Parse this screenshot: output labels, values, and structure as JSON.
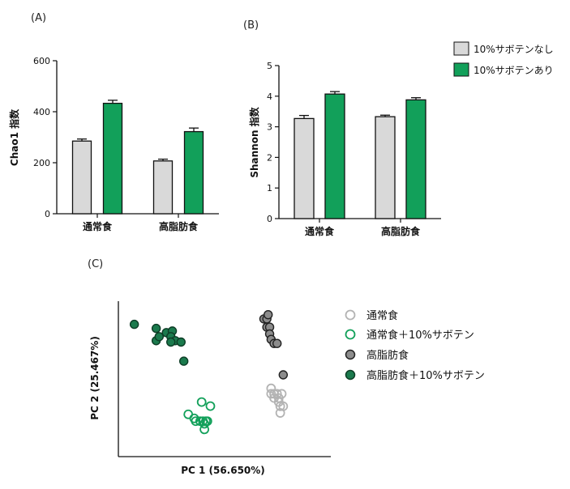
{
  "chart_data": [
    {
      "id": "A",
      "panel_label": "(A)",
      "type": "bar",
      "categories": [
        "通常食",
        "高脂肪食"
      ],
      "ylabel": "Chao1 指数",
      "ylim": [
        0,
        600
      ],
      "yticks": [
        0,
        200,
        400,
        600
      ],
      "series": [
        {
          "name": "10%サボテンなし",
          "color": "#d9d9d9",
          "values": [
            285,
            207
          ],
          "errors": [
            8,
            7
          ]
        },
        {
          "name": "10%サボテンあり",
          "color": "#12a05a",
          "values": [
            433,
            322
          ],
          "errors": [
            12,
            14
          ]
        }
      ]
    },
    {
      "id": "B",
      "panel_label": "(B)",
      "type": "bar",
      "categories": [
        "通常食",
        "高脂肪食"
      ],
      "ylabel": "Shannon 指数",
      "ylim": [
        0,
        5
      ],
      "yticks": [
        0,
        1,
        2,
        3,
        4,
        5
      ],
      "series": [
        {
          "name": "10%サボテンなし",
          "color": "#d9d9d9",
          "values": [
            3.27,
            3.33
          ],
          "errors": [
            0.1,
            0.05
          ]
        },
        {
          "name": "10%サボテンあり",
          "color": "#12a05a",
          "values": [
            4.07,
            3.88
          ],
          "errors": [
            0.08,
            0.07
          ]
        }
      ],
      "legend": "right"
    },
    {
      "id": "C",
      "panel_label": "(C)",
      "type": "scatter",
      "xlabel": "PC 1 (56.650%)",
      "ylabel": "PC 2 (25.467%)",
      "legend": "right",
      "series": [
        {
          "name": "通常食",
          "fill": "none",
          "stroke": "#b3b3b3",
          "points": [
            [
              0.719,
              0.439
            ],
            [
              0.719,
              0.404
            ],
            [
              0.733,
              0.404
            ],
            [
              0.733,
              0.377
            ],
            [
              0.755,
              0.377
            ],
            [
              0.755,
              0.351
            ],
            [
              0.747,
              0.404
            ],
            [
              0.769,
              0.404
            ],
            [
              0.762,
              0.324
            ],
            [
              0.776,
              0.324
            ],
            [
              0.762,
              0.281
            ]
          ]
        },
        {
          "name": "通常食＋10%サボテン",
          "fill": "none",
          "stroke": "#12a05a",
          "points": [
            [
              0.392,
              0.351
            ],
            [
              0.433,
              0.325
            ],
            [
              0.329,
              0.272
            ],
            [
              0.357,
              0.246
            ],
            [
              0.364,
              0.228
            ],
            [
              0.385,
              0.228
            ],
            [
              0.398,
              0.228
            ],
            [
              0.412,
              0.228
            ],
            [
              0.405,
              0.211
            ],
            [
              0.419,
              0.228
            ],
            [
              0.405,
              0.175
            ]
          ]
        },
        {
          "name": "高脂肪食",
          "fill": "#8c8c8c",
          "stroke": "#222",
          "points": [
            [
              0.685,
              0.886
            ],
            [
              0.699,
              0.886
            ],
            [
              0.705,
              0.913
            ],
            [
              0.699,
              0.833
            ],
            [
              0.712,
              0.833
            ],
            [
              0.712,
              0.789
            ],
            [
              0.719,
              0.754
            ],
            [
              0.733,
              0.728
            ],
            [
              0.747,
              0.728
            ],
            [
              0.776,
              0.526
            ]
          ]
        },
        {
          "name": "高脂肪食＋10%サボテン",
          "fill": "#1b7a4d",
          "stroke": "#0d3d26",
          "points": [
            [
              0.075,
              0.851
            ],
            [
              0.178,
              0.825
            ],
            [
              0.178,
              0.746
            ],
            [
              0.192,
              0.772
            ],
            [
              0.226,
              0.798
            ],
            [
              0.254,
              0.808
            ],
            [
              0.247,
              0.772
            ],
            [
              0.268,
              0.746
            ],
            [
              0.295,
              0.737
            ],
            [
              0.247,
              0.737
            ],
            [
              0.308,
              0.614
            ]
          ]
        }
      ]
    }
  ]
}
